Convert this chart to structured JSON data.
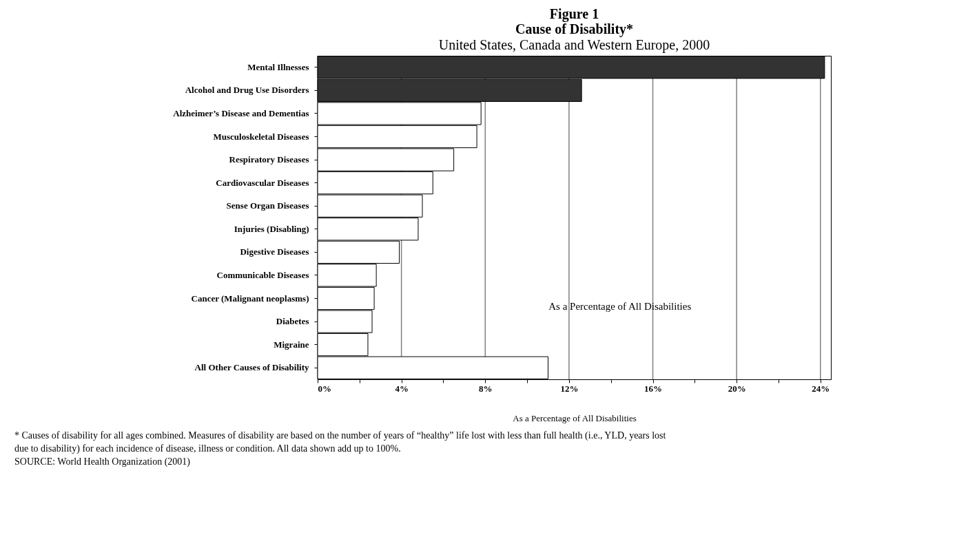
{
  "chart_data": {
    "type": "bar",
    "orientation": "horizontal",
    "title": [
      "Figure 1",
      "Cause of Disability*"
    ],
    "subtitle": "United States, Canada and Western Europe, 2000",
    "xlabel": "As a Percentage of All Disabilities",
    "categories": [
      "Mental Illnesses",
      "Alcohol and Drug Use Disorders",
      "Alzheimer’s Disease and Dementias",
      "Musculoskeletal Diseases",
      "Respiratory Diseases",
      "Cardiovascular Diseases",
      "Sense Organ Diseases",
      "Injuries (Disabling)",
      "Digestive Diseases",
      "Communicable Diseases",
      "Cancer (Malignant neoplasms)",
      "Diabetes",
      "Migraine",
      "All Other Causes of Disability"
    ],
    "values": [
      24.2,
      12.6,
      7.8,
      7.6,
      6.5,
      5.5,
      5.0,
      4.8,
      3.9,
      2.8,
      2.7,
      2.6,
      2.4,
      11.0
    ],
    "colors": [
      "#333333",
      "#333333",
      "#ffffff",
      "#ffffff",
      "#ffffff",
      "#ffffff",
      "#ffffff",
      "#ffffff",
      "#ffffff",
      "#ffffff",
      "#ffffff",
      "#ffffff",
      "#ffffff",
      "#ffffff"
    ],
    "xlim": [
      0,
      24.5
    ],
    "xticks": [
      {
        "value": 0,
        "label": "0%"
      },
      {
        "value": 2,
        "label": null
      },
      {
        "value": 4,
        "label": "4%"
      },
      {
        "value": 6,
        "label": null
      },
      {
        "value": 8,
        "label": "8%"
      },
      {
        "value": 10,
        "label": null
      },
      {
        "value": 12,
        "label": "12%"
      },
      {
        "value": 14,
        "label": null
      },
      {
        "value": 16,
        "label": "16%"
      },
      {
        "value": 18,
        "label": null
      },
      {
        "value": 20,
        "label": "20%"
      },
      {
        "value": 22,
        "label": null
      },
      {
        "value": 24,
        "label": "24%"
      }
    ],
    "grid": "x",
    "legend": false,
    "annotations": [
      "As a Percentage of All Disabilities",
      "* Causes of disability for all ages combined. Measures of disability are based on the number of years of “healthy” life lost with less than full health (i.e., YLD, years lost due to disability) for each incidence of disease, illness or condition. All data shown add up to 100%.",
      "SOURCE: World Health Organization (2001)"
    ]
  }
}
